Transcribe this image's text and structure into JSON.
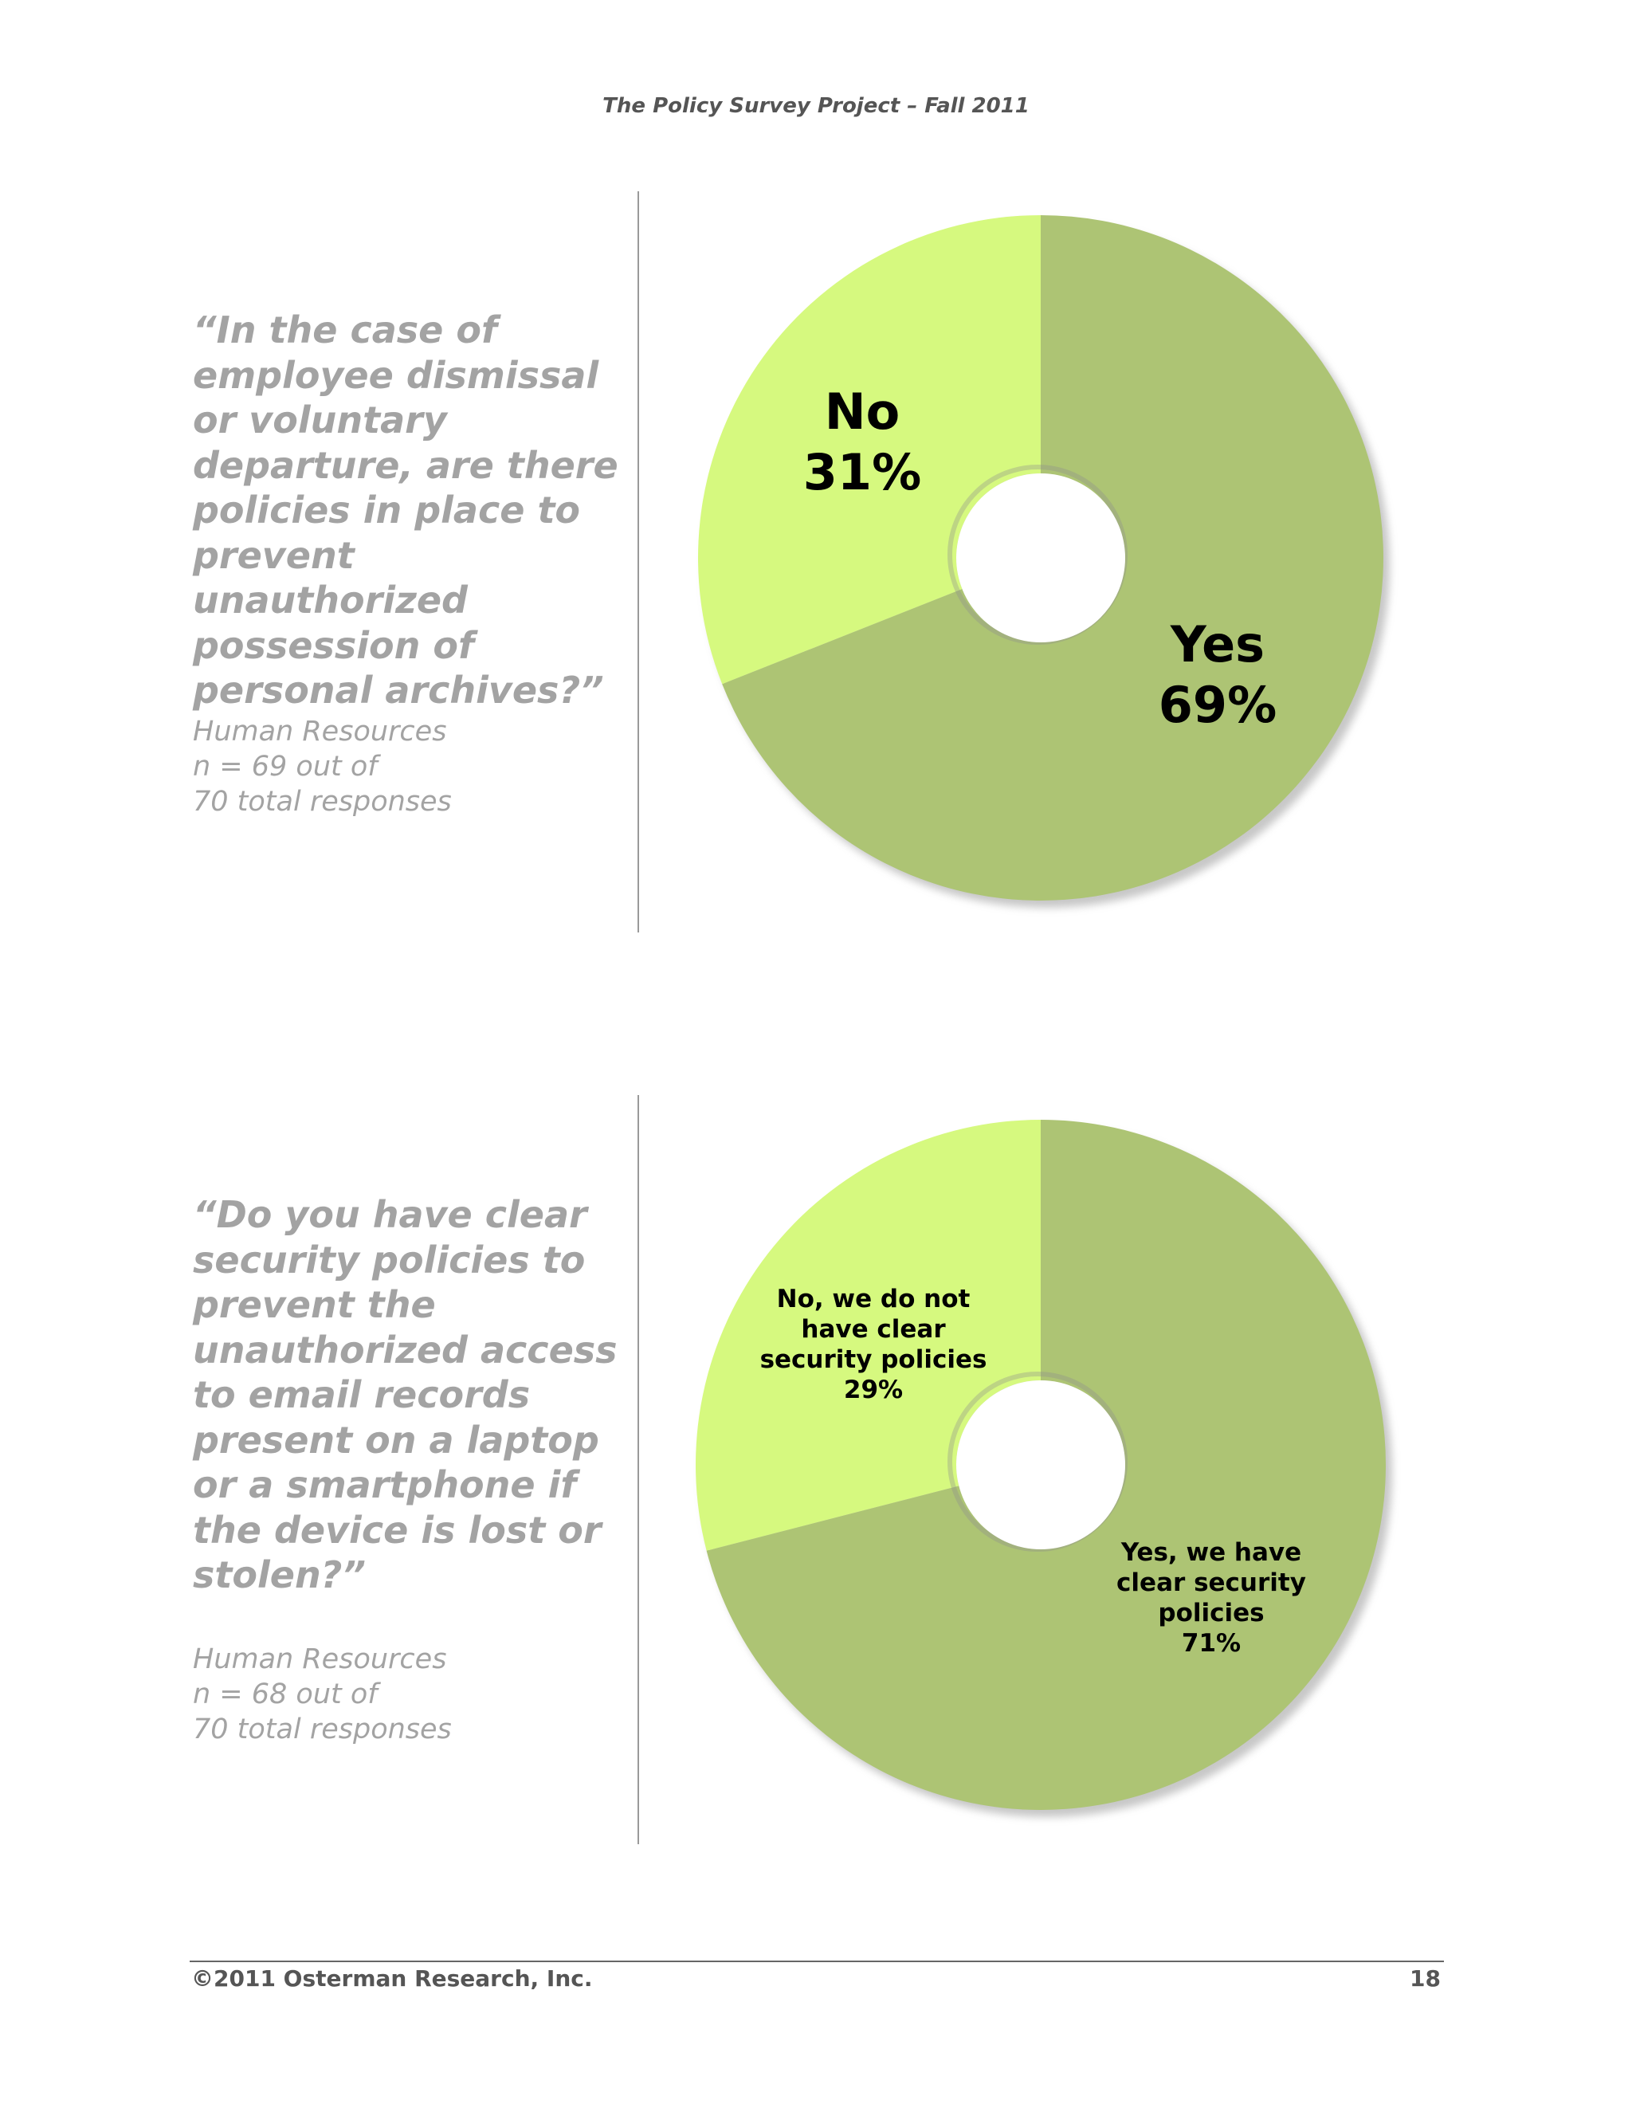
{
  "header": {
    "title": "The Policy Survey Project – Fall 2011"
  },
  "sections": [
    {
      "question": "“In the case of employee dismissal or voluntary departure, are there policies in place to prevent unauthorized possession of personal archives?”",
      "meta": [
        "Human Resources",
        "n = 69 out of",
        "70 total responses"
      ]
    },
    {
      "question": "“Do you have clear security policies to prevent the unauthorized access to email records present on a laptop or a smartphone if the device is lost or stolen?”",
      "meta": [
        "Human Resources",
        "n = 68 out of",
        "70 total responses"
      ]
    }
  ],
  "colors": {
    "yes": "#adc474",
    "no": "#d6f97f",
    "shadow": "#9a9a9a",
    "label": "#000000"
  },
  "chart_data": [
    {
      "type": "pie",
      "donut": true,
      "categories": [
        "Yes",
        "No"
      ],
      "values": [
        69,
        31
      ],
      "slice_labels": [
        [
          "Yes",
          "69%"
        ],
        [
          "No",
          "31%"
        ]
      ]
    },
    {
      "type": "pie",
      "donut": true,
      "categories": [
        "Yes, we have clear security policies",
        "No, we do not have clear security policies"
      ],
      "values": [
        71,
        29
      ],
      "slice_labels": [
        [
          "Yes, we have",
          "clear security",
          "policies",
          "71%"
        ],
        [
          "No, we do not",
          "have clear",
          "security policies",
          "29%"
        ]
      ]
    }
  ],
  "footer": {
    "copyright": "©2011 Osterman Research, Inc.",
    "page_number": "18"
  }
}
